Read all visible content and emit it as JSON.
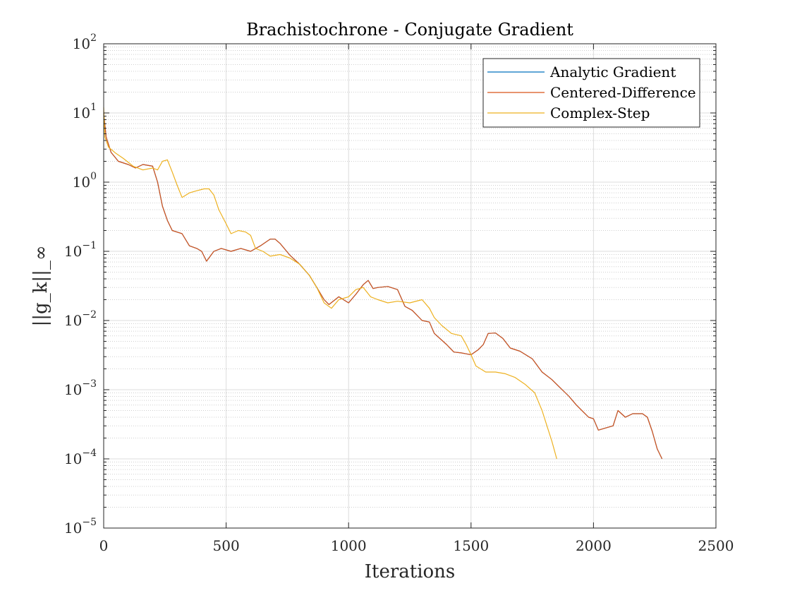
{
  "chart_data": {
    "type": "line",
    "title": "Brachistochrone - Conjugate Gradient",
    "xlabel": "Iterations",
    "ylabel": "||g_k||_∞",
    "xlim": [
      0,
      2500
    ],
    "ylim": [
      1e-05,
      100
    ],
    "yscale": "log",
    "grid": true,
    "minor_grid": true,
    "legend_position": "top-right",
    "x_ticks": [
      0,
      500,
      1000,
      1500,
      2000,
      2500
    ],
    "x_tick_labels": [
      "0",
      "500",
      "1000",
      "1500",
      "2000",
      "2500"
    ],
    "y_ticks": [
      {
        "value": 1e-05,
        "base": "10",
        "exp": "−5"
      },
      {
        "value": 0.0001,
        "base": "10",
        "exp": "−4"
      },
      {
        "value": 0.001,
        "base": "10",
        "exp": "−3"
      },
      {
        "value": 0.01,
        "base": "10",
        "exp": "−2"
      },
      {
        "value": 0.1,
        "base": "10",
        "exp": "−1"
      },
      {
        "value": 1,
        "base": "10",
        "exp": "0"
      },
      {
        "value": 10,
        "base": "10",
        "exp": "1"
      },
      {
        "value": 100,
        "base": "10",
        "exp": "2"
      }
    ],
    "series": [
      {
        "name": "Analytic Gradient",
        "color": "#0072BD",
        "x": [
          0,
          10,
          30,
          60,
          100,
          130,
          160,
          200,
          220,
          240,
          260,
          280,
          320,
          350,
          380,
          400,
          420,
          450,
          480,
          520,
          560,
          600,
          640,
          680,
          700,
          720,
          760,
          800,
          840,
          870,
          900,
          920,
          960,
          1000,
          1030,
          1060,
          1080,
          1100,
          1120,
          1160,
          1200,
          1230,
          1260,
          1300,
          1330,
          1350,
          1400,
          1430,
          1460,
          1480,
          1500,
          1530,
          1550,
          1570,
          1600,
          1630,
          1660,
          1700,
          1750,
          1790,
          1830,
          1860,
          1900,
          1930,
          1960,
          1980,
          2000,
          2020,
          2050,
          2080,
          2100,
          2130,
          2160,
          2200,
          2220,
          2240,
          2260,
          2280
        ],
        "y": [
          10,
          4.5,
          2.7,
          2.0,
          1.8,
          1.6,
          1.8,
          1.7,
          1.0,
          0.45,
          0.28,
          0.2,
          0.18,
          0.12,
          0.11,
          0.1,
          0.072,
          0.1,
          0.11,
          0.1,
          0.11,
          0.1,
          0.12,
          0.15,
          0.15,
          0.13,
          0.088,
          0.065,
          0.045,
          0.03,
          0.02,
          0.017,
          0.022,
          0.018,
          0.024,
          0.033,
          0.038,
          0.029,
          0.03,
          0.031,
          0.028,
          0.016,
          0.014,
          0.01,
          0.0095,
          0.0065,
          0.0045,
          0.0035,
          0.0034,
          0.0033,
          0.0032,
          0.0038,
          0.0045,
          0.0065,
          0.0066,
          0.0055,
          0.004,
          0.0036,
          0.0028,
          0.0018,
          0.0014,
          0.0011,
          0.0008,
          0.0006,
          0.00047,
          0.0004,
          0.00038,
          0.00026,
          0.00028,
          0.0003,
          0.0005,
          0.0004,
          0.00045,
          0.00045,
          0.0004,
          0.00025,
          0.00014,
          0.0001
        ]
      },
      {
        "name": "Centered-Difference",
        "color": "#D95319",
        "x": [
          0,
          10,
          30,
          60,
          100,
          130,
          160,
          200,
          220,
          240,
          260,
          280,
          320,
          350,
          380,
          400,
          420,
          450,
          480,
          520,
          560,
          600,
          640,
          680,
          700,
          720,
          760,
          800,
          840,
          870,
          900,
          920,
          960,
          1000,
          1030,
          1060,
          1080,
          1100,
          1120,
          1160,
          1200,
          1230,
          1260,
          1300,
          1330,
          1350,
          1400,
          1430,
          1460,
          1480,
          1500,
          1530,
          1550,
          1570,
          1600,
          1630,
          1660,
          1700,
          1750,
          1790,
          1830,
          1860,
          1900,
          1930,
          1960,
          1980,
          2000,
          2020,
          2050,
          2080,
          2100,
          2130,
          2160,
          2200,
          2220,
          2240,
          2260,
          2280
        ],
        "y": [
          10,
          4.5,
          2.7,
          2.0,
          1.8,
          1.6,
          1.8,
          1.7,
          1.0,
          0.45,
          0.28,
          0.2,
          0.18,
          0.12,
          0.11,
          0.1,
          0.072,
          0.1,
          0.11,
          0.1,
          0.11,
          0.1,
          0.12,
          0.15,
          0.15,
          0.13,
          0.088,
          0.065,
          0.045,
          0.03,
          0.02,
          0.017,
          0.022,
          0.018,
          0.024,
          0.033,
          0.038,
          0.029,
          0.03,
          0.031,
          0.028,
          0.016,
          0.014,
          0.01,
          0.0095,
          0.0065,
          0.0045,
          0.0035,
          0.0034,
          0.0033,
          0.0032,
          0.0038,
          0.0045,
          0.0065,
          0.0066,
          0.0055,
          0.004,
          0.0036,
          0.0028,
          0.0018,
          0.0014,
          0.0011,
          0.0008,
          0.0006,
          0.00047,
          0.0004,
          0.00038,
          0.00026,
          0.00028,
          0.0003,
          0.0005,
          0.0004,
          0.00045,
          0.00045,
          0.0004,
          0.00025,
          0.00014,
          0.0001
        ]
      },
      {
        "name": "Complex-Step",
        "color": "#EDB120",
        "x": [
          0,
          5,
          20,
          50,
          80,
          120,
          160,
          200,
          220,
          240,
          260,
          280,
          300,
          320,
          350,
          380,
          410,
          430,
          450,
          470,
          500,
          520,
          550,
          580,
          600,
          620,
          650,
          680,
          720,
          760,
          800,
          840,
          870,
          900,
          930,
          960,
          1000,
          1030,
          1060,
          1090,
          1120,
          1160,
          1200,
          1250,
          1300,
          1330,
          1350,
          1380,
          1420,
          1460,
          1480,
          1500,
          1520,
          1560,
          1600,
          1640,
          1680,
          1720,
          1760,
          1790,
          1810,
          1830,
          1850
        ],
        "y": [
          12,
          4.5,
          3.2,
          2.6,
          2.2,
          1.7,
          1.5,
          1.6,
          1.5,
          2.0,
          2.1,
          1.4,
          0.9,
          0.6,
          0.7,
          0.75,
          0.8,
          0.8,
          0.65,
          0.4,
          0.25,
          0.18,
          0.2,
          0.19,
          0.17,
          0.11,
          0.1,
          0.085,
          0.09,
          0.08,
          0.065,
          0.045,
          0.03,
          0.018,
          0.015,
          0.02,
          0.022,
          0.028,
          0.03,
          0.022,
          0.02,
          0.018,
          0.019,
          0.018,
          0.02,
          0.015,
          0.011,
          0.0085,
          0.0065,
          0.006,
          0.0045,
          0.0032,
          0.0022,
          0.0018,
          0.0018,
          0.0017,
          0.0015,
          0.0012,
          0.0009,
          0.0005,
          0.0003,
          0.00018,
          0.0001
        ]
      }
    ]
  }
}
